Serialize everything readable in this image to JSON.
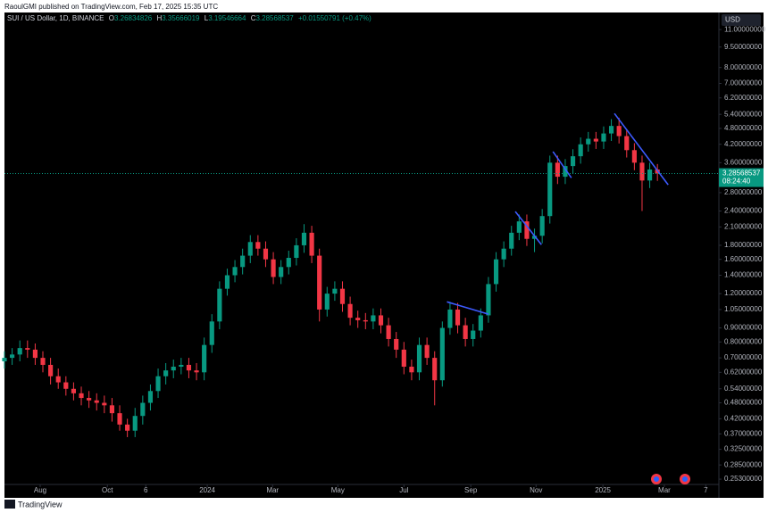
{
  "header": {
    "publisher": "RaoulGMI published on TradingView.com, Feb 17, 2025 15:35 UTC"
  },
  "footer": {
    "brand": "TradingView"
  },
  "chart_data": {
    "type": "candlestick",
    "title": "SUI / US Dollar, 1D, BINANCE",
    "ohlc_legend": {
      "o_label": "O",
      "o": "3.26834826",
      "h_label": "H",
      "h": "3.35666019",
      "l_label": "L",
      "l": "3.19546664",
      "c_label": "C",
      "c": "3.28568537",
      "change": "+0.01550791 (+0.47%)"
    },
    "currency": "USD",
    "last_price": {
      "value": 3.28568537,
      "label": "3.28568537"
    },
    "countdown": "08:24:40",
    "log_scale": true,
    "up_color": "#089981",
    "down_color": "#f23645",
    "xlim": [
      0,
      93
    ],
    "xticks": [
      {
        "value": 4.65,
        "label": "Aug"
      },
      {
        "value": 13.4,
        "label": "Oct"
      },
      {
        "value": 18.4,
        "label": "6"
      },
      {
        "value": 26.4,
        "label": "2024"
      },
      {
        "value": 34.9,
        "label": "Mar"
      },
      {
        "value": 43.4,
        "label": "May"
      },
      {
        "value": 52.0,
        "label": "Jul"
      },
      {
        "value": 60.7,
        "label": "Sep"
      },
      {
        "value": 69.2,
        "label": "Nov"
      },
      {
        "value": 77.9,
        "label": "2025"
      },
      {
        "value": 85.9,
        "label": "Mar"
      },
      {
        "value": 91.3,
        "label": "7"
      }
    ],
    "ylim": [
      0.242,
      12.6
    ],
    "yticks": [
      {
        "value": 11,
        "label": "11.00000000"
      },
      {
        "value": 9.5,
        "label": "9.50000000"
      },
      {
        "value": 8,
        "label": "8.00000000"
      },
      {
        "value": 7,
        "label": "7.00000000"
      },
      {
        "value": 6.2,
        "label": "6.20000000"
      },
      {
        "value": 5.4,
        "label": "5.40000000"
      },
      {
        "value": 4.8,
        "label": "4.80000000"
      },
      {
        "value": 4.2,
        "label": "4.20000000"
      },
      {
        "value": 3.6,
        "label": "3.60000000"
      },
      {
        "value": 2.8,
        "label": "2.80000000"
      },
      {
        "value": 2.4,
        "label": "2.40000000"
      },
      {
        "value": 2.1,
        "label": "2.10000000"
      },
      {
        "value": 1.8,
        "label": "1.80000000"
      },
      {
        "value": 1.6,
        "label": "1.60000000"
      },
      {
        "value": 1.4,
        "label": "1.40000000"
      },
      {
        "value": 1.2,
        "label": "1.20000000"
      },
      {
        "value": 1.05,
        "label": "1.05000000"
      },
      {
        "value": 0.9,
        "label": "0.90000000"
      },
      {
        "value": 0.8,
        "label": "0.80000000"
      },
      {
        "value": 0.7,
        "label": "0.70000000"
      },
      {
        "value": 0.62,
        "label": "0.62000000"
      },
      {
        "value": 0.54,
        "label": "0.54000000"
      },
      {
        "value": 0.48,
        "label": "0.48000000"
      },
      {
        "value": 0.42,
        "label": "0.42000000"
      },
      {
        "value": 0.37,
        "label": "0.37000000"
      },
      {
        "value": 0.325,
        "label": "0.32500000"
      },
      {
        "value": 0.285,
        "label": "0.28500000"
      },
      {
        "value": 0.253,
        "label": "0.25300000"
      }
    ],
    "open": [
      0.68,
      0.7,
      0.72,
      0.76,
      0.75,
      0.7,
      0.66,
      0.6,
      0.57,
      0.54,
      0.52,
      0.5,
      0.49,
      0.48,
      0.47,
      0.44,
      0.4,
      0.38,
      0.43,
      0.48,
      0.53,
      0.6,
      0.63,
      0.65,
      0.66,
      0.63,
      0.62,
      0.78,
      0.95,
      1.25,
      1.4,
      1.5,
      1.65,
      1.85,
      1.75,
      1.6,
      1.38,
      1.5,
      1.62,
      1.8,
      2.0,
      1.65,
      1.05,
      1.2,
      1.25,
      1.1,
      0.98,
      0.96,
      0.95,
      1.0,
      0.92,
      0.82,
      0.75,
      0.65,
      0.62,
      0.78,
      0.7,
      0.58,
      0.9,
      1.05,
      0.92,
      0.82,
      0.88,
      1.0,
      1.3,
      1.6,
      1.75,
      2.0,
      2.2,
      1.9,
      1.95,
      2.3,
      3.6,
      3.2,
      3.5,
      3.8,
      4.2,
      4.4,
      4.3,
      4.6,
      4.9,
      4.5,
      4.0,
      3.6,
      3.1,
      3.4
    ],
    "high": [
      0.74,
      0.76,
      0.81,
      0.81,
      0.79,
      0.74,
      0.7,
      0.64,
      0.6,
      0.57,
      0.55,
      0.53,
      0.52,
      0.51,
      0.5,
      0.47,
      0.42,
      0.46,
      0.51,
      0.56,
      0.64,
      0.67,
      0.69,
      0.7,
      0.7,
      0.67,
      0.83,
      1.01,
      1.33,
      1.48,
      1.59,
      1.75,
      1.96,
      1.96,
      1.86,
      1.7,
      1.59,
      1.72,
      1.91,
      2.15,
      2.12,
      1.75,
      1.27,
      1.33,
      1.33,
      1.17,
      1.04,
      1.02,
      1.06,
      1.06,
      0.98,
      0.87,
      0.8,
      0.69,
      0.83,
      0.83,
      0.74,
      0.95,
      1.12,
      1.11,
      0.98,
      0.93,
      1.06,
      1.38,
      1.7,
      1.86,
      2.12,
      2.33,
      2.33,
      2.07,
      2.44,
      3.82,
      3.82,
      3.71,
      4.03,
      4.45,
      4.66,
      4.66,
      4.88,
      5.19,
      5.25,
      4.77,
      4.24,
      3.82,
      3.6,
      3.56
    ],
    "low": [
      0.64,
      0.66,
      0.68,
      0.7,
      0.66,
      0.62,
      0.56,
      0.54,
      0.51,
      0.49,
      0.47,
      0.46,
      0.45,
      0.44,
      0.41,
      0.38,
      0.36,
      0.36,
      0.4,
      0.45,
      0.5,
      0.56,
      0.59,
      0.61,
      0.59,
      0.58,
      0.58,
      0.73,
      0.89,
      1.18,
      1.32,
      1.41,
      1.55,
      1.65,
      1.5,
      1.3,
      1.3,
      1.41,
      1.52,
      1.69,
      1.55,
      0.95,
      0.99,
      1.13,
      1.03,
      0.92,
      0.9,
      0.89,
      0.89,
      0.86,
      0.77,
      0.7,
      0.61,
      0.58,
      0.58,
      0.66,
      0.47,
      0.55,
      0.85,
      0.86,
      0.77,
      0.77,
      0.83,
      0.94,
      1.22,
      1.5,
      1.65,
      1.88,
      1.79,
      1.7,
      1.83,
      2.16,
      3.01,
      3.01,
      3.29,
      3.57,
      3.95,
      4.04,
      4.04,
      4.32,
      4.23,
      3.76,
      3.38,
      2.4,
      2.91,
      3.09
    ],
    "close": [
      0.7,
      0.72,
      0.76,
      0.75,
      0.7,
      0.66,
      0.6,
      0.57,
      0.54,
      0.52,
      0.5,
      0.49,
      0.48,
      0.47,
      0.44,
      0.4,
      0.38,
      0.43,
      0.48,
      0.53,
      0.6,
      0.63,
      0.65,
      0.66,
      0.63,
      0.62,
      0.78,
      0.95,
      1.25,
      1.4,
      1.5,
      1.65,
      1.85,
      1.75,
      1.6,
      1.38,
      1.5,
      1.62,
      1.8,
      2.0,
      1.65,
      1.05,
      1.2,
      1.25,
      1.1,
      0.98,
      0.96,
      0.95,
      1.0,
      0.92,
      0.82,
      0.75,
      0.65,
      0.62,
      0.78,
      0.7,
      0.58,
      0.9,
      1.05,
      0.92,
      0.82,
      0.88,
      1.0,
      1.3,
      1.6,
      1.75,
      2.0,
      2.2,
      1.9,
      1.95,
      2.3,
      3.6,
      3.2,
      3.5,
      3.8,
      4.2,
      4.4,
      4.3,
      4.6,
      4.9,
      4.5,
      4.0,
      3.6,
      3.1,
      3.4,
      3.29
    ],
    "trendlines": [
      {
        "color": "#3d5afe",
        "x": [
          57.6,
          63.0
        ],
        "y": [
          1.12,
          1.01
        ]
      },
      {
        "color": "#3d5afe",
        "x": [
          66.5,
          69.9
        ],
        "y": [
          2.39,
          1.81
        ]
      },
      {
        "color": "#3d5afe",
        "x": [
          71.4,
          73.8
        ],
        "y": [
          3.95,
          3.17
        ]
      },
      {
        "color": "#3d5afe",
        "x": [
          79.4,
          86.4
        ],
        "y": [
          5.44,
          2.99
        ]
      }
    ]
  }
}
